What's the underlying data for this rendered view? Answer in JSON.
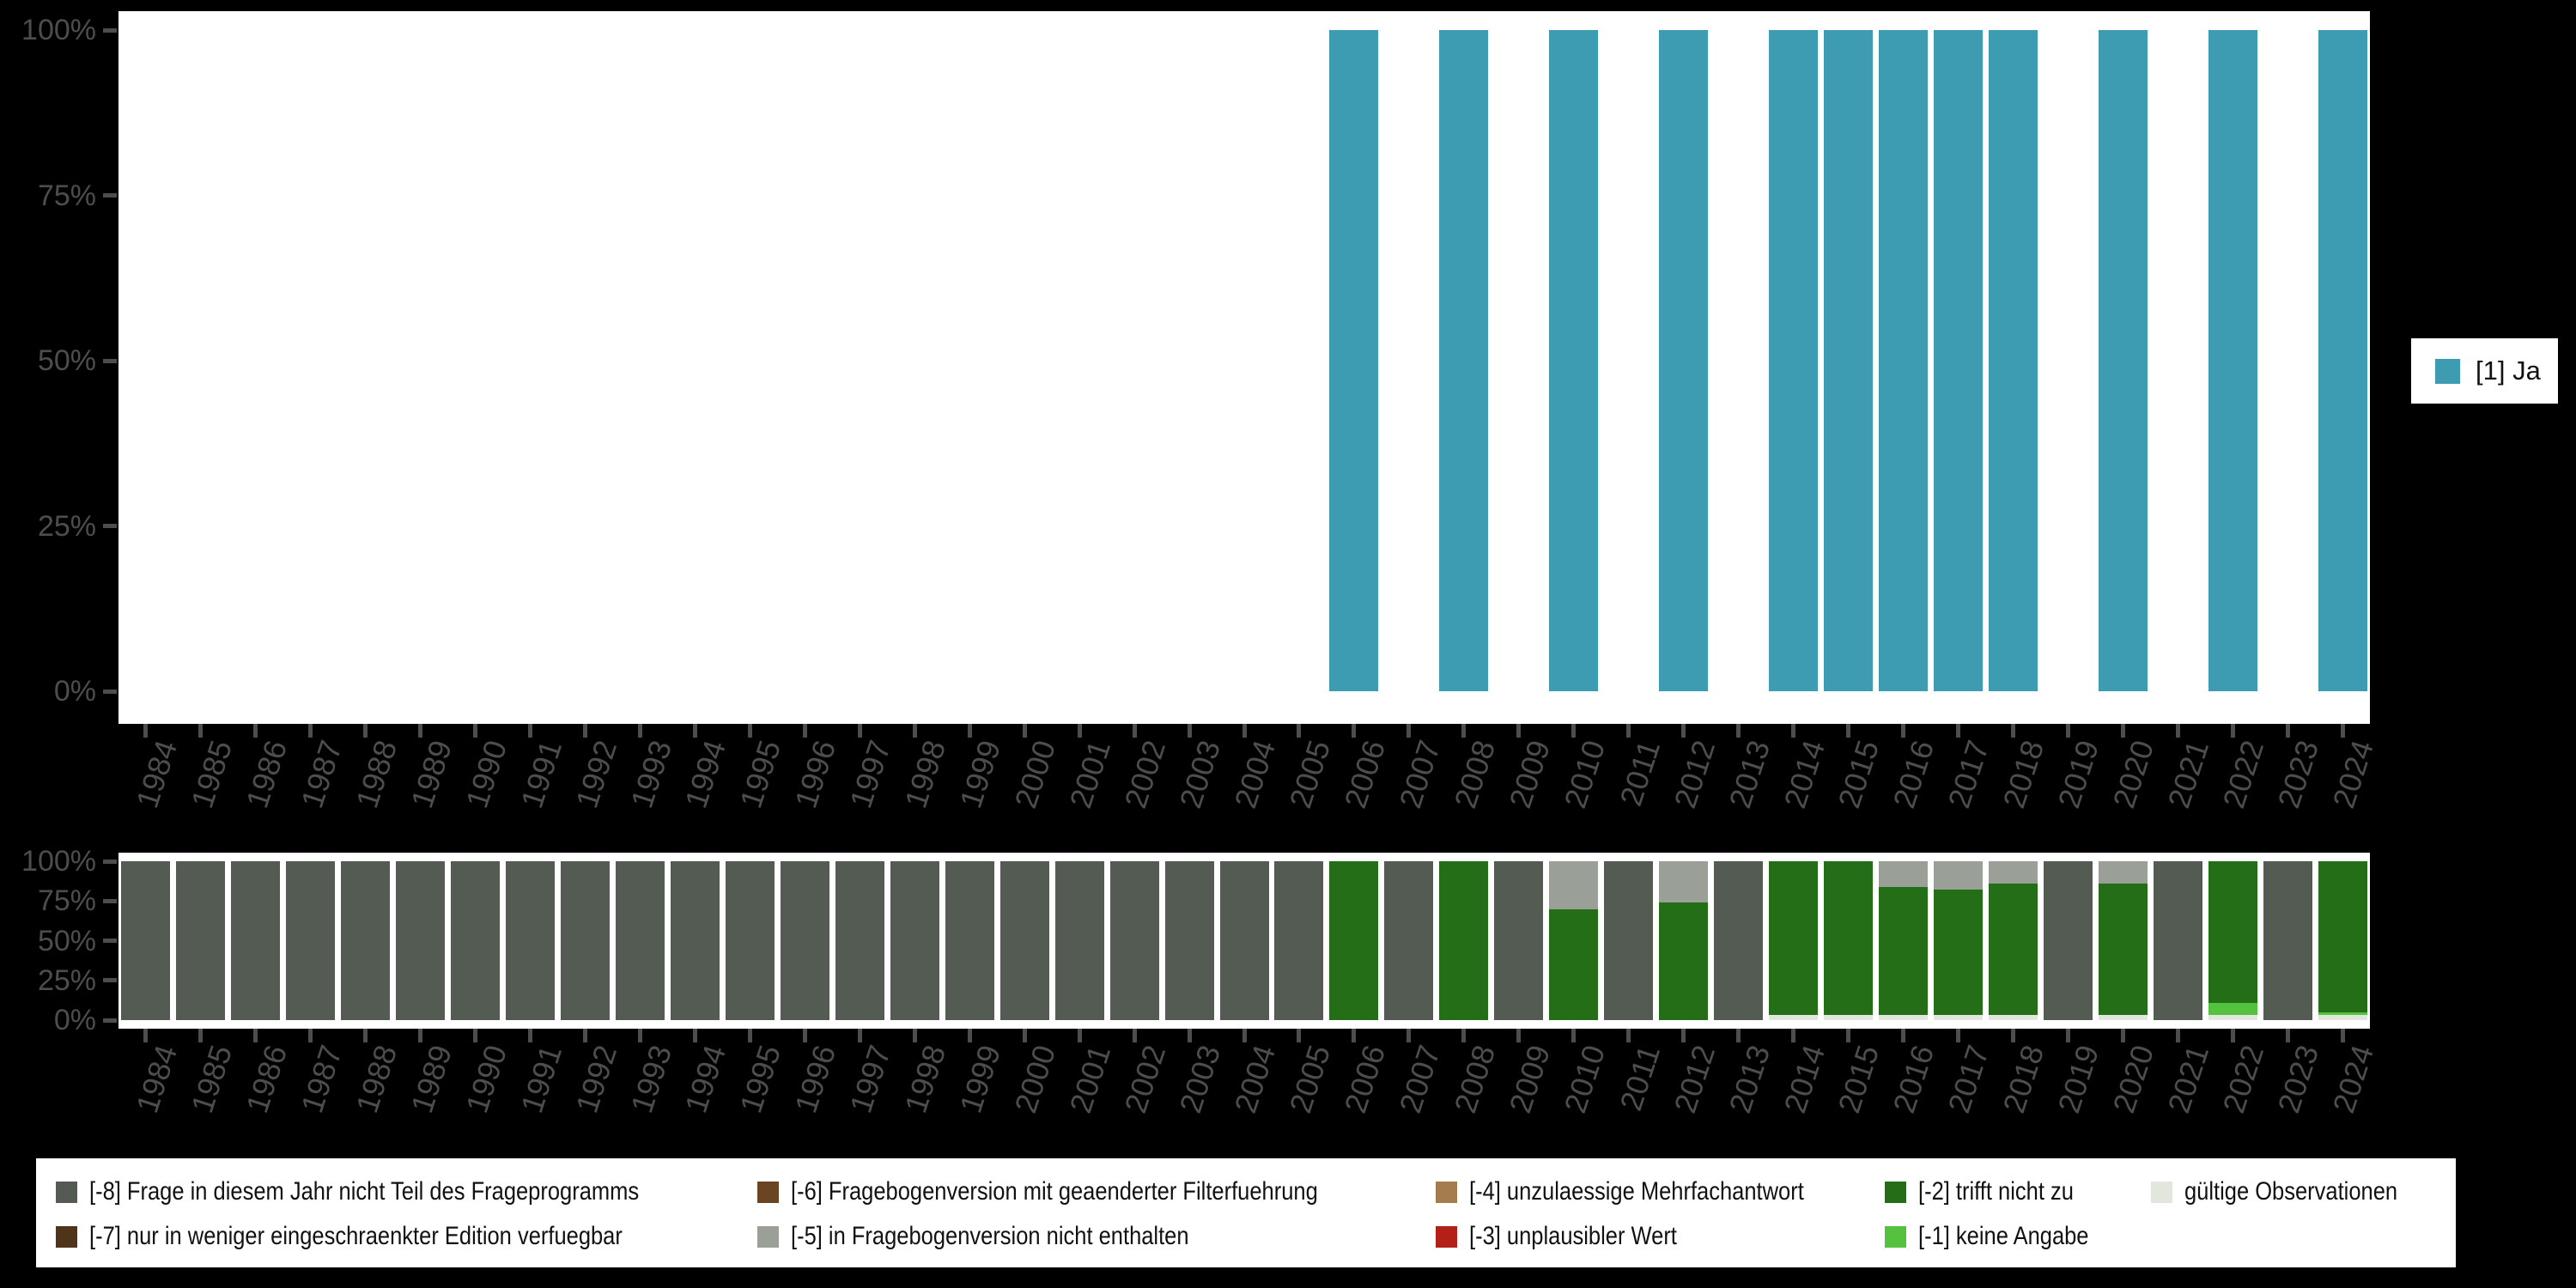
{
  "colors": {
    "background": "#000000",
    "plot_background": "#FFFFFF",
    "axis_text": "#4D4D4D",
    "ja": "#3D9CB2",
    "m8": "#545B53",
    "m7": "#4F3419",
    "m6": "#6B4523",
    "m5": "#9AA098",
    "m4": "#A57C4B",
    "m3": "#B22018",
    "m2": "#236E16",
    "m1": "#55C23F",
    "valid": "#E2E7DE"
  },
  "top_legend": {
    "label": "[1] Ja",
    "color_key": "ja"
  },
  "bottom_legend": {
    "items": [
      {
        "label": "[-8] Frage in diesem Jahr nicht Teil des Frageprogramms",
        "color_key": "m8",
        "col": 0,
        "row": 0
      },
      {
        "label": "[-7] nur in weniger eingeschraenkter Edition verfuegbar",
        "color_key": "m7",
        "col": 0,
        "row": 1
      },
      {
        "label": "[-6] Fragebogenversion mit geaenderter Filterfuehrung",
        "color_key": "m6",
        "col": 1,
        "row": 0
      },
      {
        "label": "[-5] in Fragebogenversion nicht enthalten",
        "color_key": "m5",
        "col": 1,
        "row": 1
      },
      {
        "label": "[-4] unzulaessige Mehrfachantwort",
        "color_key": "m4",
        "col": 2,
        "row": 0
      },
      {
        "label": "[-3] unplausibler Wert",
        "color_key": "m3",
        "col": 2,
        "row": 1
      },
      {
        "label": "[-2] trifft nicht zu",
        "color_key": "m2",
        "col": 3,
        "row": 0
      },
      {
        "label": "[-1] keine Angabe",
        "color_key": "m1",
        "col": 3,
        "row": 1
      },
      {
        "label": "gültige Observationen",
        "color_key": "valid",
        "col": 4,
        "row": 0
      }
    ]
  },
  "chart_data": [
    {
      "type": "bar",
      "stacked": true,
      "title": "",
      "xlabel": "",
      "ylabel": "",
      "ylim": [
        0,
        100
      ],
      "yticks": [
        "0%",
        "25%",
        "50%",
        "75%",
        "100%"
      ],
      "grid": false,
      "legend_position": "right",
      "categories": [
        "1984",
        "1985",
        "1986",
        "1987",
        "1988",
        "1989",
        "1990",
        "1991",
        "1992",
        "1993",
        "1994",
        "1995",
        "1996",
        "1997",
        "1998",
        "1999",
        "2000",
        "2001",
        "2002",
        "2003",
        "2004",
        "2005",
        "2006",
        "2007",
        "2008",
        "2009",
        "2010",
        "2011",
        "2012",
        "2013",
        "2014",
        "2015",
        "2016",
        "2017",
        "2018",
        "2019",
        "2020",
        "2021",
        "2022",
        "2023",
        "2024"
      ],
      "series": [
        {
          "name": "[1] Ja",
          "color_key": "ja",
          "values_by_year": {
            "2006": 100,
            "2008": 100,
            "2010": 100,
            "2012": 100,
            "2014": 100,
            "2015": 100,
            "2016": 100,
            "2017": 100,
            "2018": 100,
            "2020": 100,
            "2022": 100,
            "2024": 100
          }
        }
      ]
    },
    {
      "type": "bar",
      "stacked": true,
      "title": "",
      "xlabel": "",
      "ylabel": "",
      "ylim": [
        0,
        100
      ],
      "yticks": [
        "0%",
        "25%",
        "50%",
        "75%",
        "100%"
      ],
      "grid": false,
      "legend_position": "bottom",
      "stack_order": "top-to-bottom",
      "categories": [
        "1984",
        "1985",
        "1986",
        "1987",
        "1988",
        "1989",
        "1990",
        "1991",
        "1992",
        "1993",
        "1994",
        "1995",
        "1996",
        "1997",
        "1998",
        "1999",
        "2000",
        "2001",
        "2002",
        "2003",
        "2004",
        "2005",
        "2006",
        "2007",
        "2008",
        "2009",
        "2010",
        "2011",
        "2012",
        "2013",
        "2014",
        "2015",
        "2016",
        "2017",
        "2018",
        "2019",
        "2020",
        "2021",
        "2022",
        "2023",
        "2024"
      ],
      "series": [
        {
          "name": "[-8] Frage in diesem Jahr nicht Teil des Frageprogramms",
          "color_key": "m8",
          "values_by_year": {
            "1984": 100,
            "1985": 100,
            "1986": 100,
            "1987": 100,
            "1988": 100,
            "1989": 100,
            "1990": 100,
            "1991": 100,
            "1992": 100,
            "1993": 100,
            "1994": 100,
            "1995": 100,
            "1996": 100,
            "1997": 100,
            "1998": 100,
            "1999": 100,
            "2000": 100,
            "2001": 100,
            "2002": 100,
            "2003": 100,
            "2004": 100,
            "2005": 100,
            "2007": 100,
            "2009": 100,
            "2011": 100,
            "2013": 100,
            "2019": 100,
            "2021": 100,
            "2023": 100
          }
        },
        {
          "name": "[-7] nur in weniger eingeschraenkter Edition verfuegbar",
          "color_key": "m7",
          "values_by_year": {}
        },
        {
          "name": "[-6] Fragebogenversion mit geaenderter Filterfuehrung",
          "color_key": "m6",
          "values_by_year": {}
        },
        {
          "name": "[-5] in Fragebogenversion nicht enthalten",
          "color_key": "m5",
          "values_by_year": {
            "2010": 30,
            "2012": 26,
            "2016": 16,
            "2017": 18,
            "2018": 14,
            "2020": 14
          }
        },
        {
          "name": "[-4] unzulaessige Mehrfachantwort",
          "color_key": "m4",
          "values_by_year": {}
        },
        {
          "name": "[-3] unplausibler Wert",
          "color_key": "m3",
          "values_by_year": {}
        },
        {
          "name": "[-2] trifft nicht zu",
          "color_key": "m2",
          "values_by_year": {
            "2006": 100,
            "2008": 100,
            "2010": 70,
            "2012": 74,
            "2014": 97,
            "2015": 97,
            "2016": 81,
            "2017": 79,
            "2018": 83,
            "2020": 83,
            "2022": 89,
            "2024": 95
          }
        },
        {
          "name": "[-1] keine Angabe",
          "color_key": "m1",
          "values_by_year": {
            "2022": 8,
            "2024": 2
          }
        },
        {
          "name": "gültige Observationen",
          "color_key": "valid",
          "values_by_year": {
            "2014": 3,
            "2015": 3,
            "2016": 3,
            "2017": 3,
            "2018": 3,
            "2020": 3,
            "2022": 3,
            "2024": 3
          }
        }
      ]
    }
  ]
}
